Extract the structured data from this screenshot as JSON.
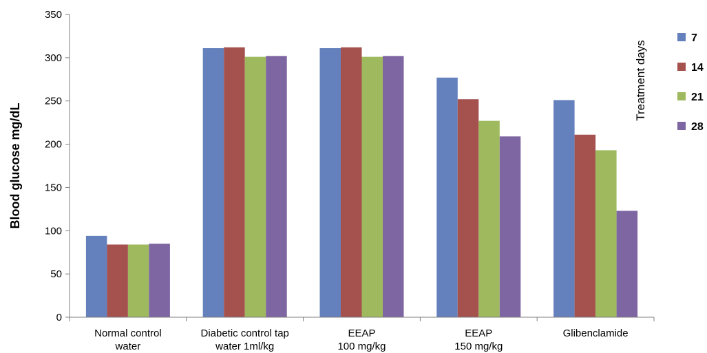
{
  "chart_data": {
    "type": "bar",
    "ylabel": "Blood glucose mg/dL",
    "xlabel": "",
    "ylim": [
      0,
      350
    ],
    "yticks": [
      0,
      50,
      100,
      150,
      200,
      250,
      300,
      350
    ],
    "grid": false,
    "legend_position": "right",
    "legend_title": "Treatment days",
    "categories": [
      [
        "Normal control",
        "water"
      ],
      [
        "Diabetic control tap",
        "water 1ml/kg"
      ],
      [
        "EEAP",
        "100 mg/kg"
      ],
      [
        "EEAP",
        "150 mg/kg"
      ],
      [
        "Glibenclamide"
      ]
    ],
    "series": [
      {
        "name": "7",
        "color": "#6480BD",
        "values": [
          94,
          311,
          311,
          277,
          251
        ]
      },
      {
        "name": "14",
        "color": "#A5524F",
        "values": [
          84,
          312,
          312,
          252,
          211
        ]
      },
      {
        "name": "21",
        "color": "#9FBA5E",
        "values": [
          84,
          301,
          301,
          227,
          193
        ]
      },
      {
        "name": "28",
        "color": "#7E66A2",
        "values": [
          85,
          302,
          302,
          209,
          123
        ]
      }
    ]
  }
}
